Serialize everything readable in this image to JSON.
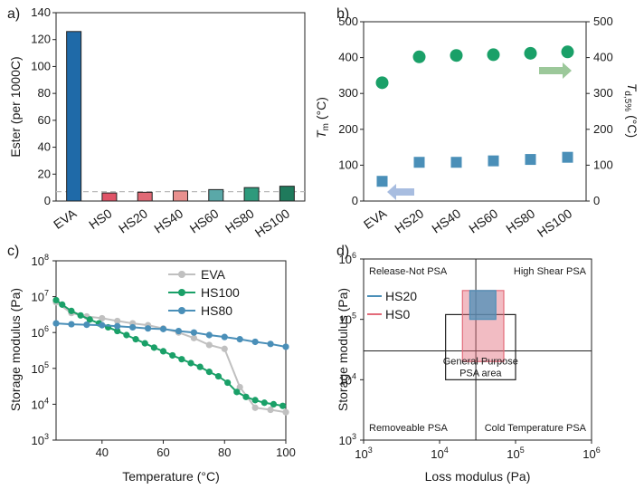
{
  "chart_data": [
    {
      "panel": "a)",
      "type": "bar",
      "categories": [
        "EVA",
        "HS0",
        "HS20",
        "HS40",
        "HS60",
        "HS80",
        "HS100"
      ],
      "values": [
        126,
        6,
        6.5,
        7.5,
        8.5,
        10,
        11
      ],
      "colors": [
        "#1f6aa8",
        "#e05468",
        "#e06a76",
        "#e8908e",
        "#5aa8a8",
        "#2e9a7c",
        "#1f7a5c"
      ],
      "reference_line": 7,
      "xlabel": "",
      "ylabel": "Ester (per 1000C)",
      "ylim": [
        0,
        140
      ],
      "yticks": [
        "0",
        "20",
        "40",
        "60",
        "80",
        "100",
        "120",
        "140"
      ]
    },
    {
      "panel": "b)",
      "type": "scatter",
      "categories": [
        "EVA",
        "HS20",
        "HS40",
        "HS60",
        "HS80",
        "HS100"
      ],
      "series": [
        {
          "axis": "left",
          "color": "#1aa068",
          "marker": "circle",
          "values": [
            330,
            402,
            406,
            408,
            412,
            416
          ]
        },
        {
          "axis": "right",
          "color": "#4a8fb8",
          "marker": "square",
          "values": [
            55,
            108,
            108,
            112,
            116,
            122
          ]
        }
      ],
      "ylabel_left": "T",
      "ylabel_left_sub": "m",
      "ylabel_left_unit": " (°C)",
      "ylabel_right": "T",
      "ylabel_right_sub": "d,5%",
      "ylabel_right_unit": " (°C)",
      "ylim": [
        0,
        500
      ],
      "yticks": [
        "0",
        "100",
        "200",
        "300",
        "400",
        "500"
      ],
      "arrow_colors": [
        "#9cc89a",
        "#a8bde0"
      ]
    },
    {
      "panel": "c)",
      "type": "line",
      "xlabel": "Temperature (°C)",
      "ylabel": "Storage modulus (Pa)",
      "xlim": [
        25,
        100
      ],
      "xticks": [
        "40",
        "60",
        "80",
        "100"
      ],
      "ylog": true,
      "ylim": [
        1000,
        100000000
      ],
      "ytick_base": "10",
      "ytick_exponents": [
        "3",
        "4",
        "5",
        "6",
        "7",
        "8"
      ],
      "series": [
        {
          "name": "EVA",
          "color": "#c0c0c0",
          "x": [
            25,
            30,
            35,
            40,
            45,
            50,
            55,
            60,
            65,
            70,
            75,
            80,
            85,
            90,
            95,
            100
          ],
          "y": [
            7000000,
            3500000,
            2800000,
            2500000,
            2100000,
            1800000,
            1600000,
            1300000,
            1000000,
            700000,
            450000,
            350000,
            30000,
            8000,
            7000,
            6000
          ]
        },
        {
          "name": "HS100",
          "color": "#1aa068",
          "x": [
            25,
            27,
            30,
            33,
            36,
            39,
            42,
            45,
            48,
            51,
            54,
            57,
            60,
            63,
            66,
            69,
            72,
            75,
            78,
            81,
            84,
            87,
            90,
            93,
            96,
            99
          ],
          "y": [
            8000000,
            6000000,
            4000000,
            3000000,
            2300000,
            1800000,
            1400000,
            1100000,
            850000,
            650000,
            500000,
            380000,
            300000,
            230000,
            180000,
            140000,
            110000,
            80000,
            60000,
            40000,
            22000,
            16000,
            13000,
            11000,
            10000,
            9000
          ]
        },
        {
          "name": "HS80",
          "color": "#4a8fb8",
          "x": [
            25,
            30,
            35,
            40,
            45,
            50,
            55,
            60,
            65,
            70,
            75,
            80,
            85,
            90,
            95,
            100
          ],
          "y": [
            1800000,
            1700000,
            1650000,
            1600000,
            1500000,
            1400000,
            1300000,
            1250000,
            1100000,
            1000000,
            850000,
            750000,
            650000,
            550000,
            480000,
            400000
          ]
        }
      ]
    },
    {
      "panel": "d)",
      "type": "scatter",
      "xlabel": "Loss modulus (Pa)",
      "ylabel": "Storage modulus (Pa)",
      "xlog": true,
      "ylog": true,
      "xlim": [
        1000,
        1000000
      ],
      "ylim": [
        1000,
        1000000
      ],
      "tick_base": "10",
      "tick_exponents": [
        "3",
        "4",
        "5",
        "6"
      ],
      "divider_x": 30000,
      "divider_y": 30000,
      "quadrant_labels": [
        "Release-Not PSA",
        "High Shear PSA",
        "Removeable PSA",
        "Cold Temperature PSA"
      ],
      "region": {
        "label_line1": "General Purpose",
        "label_line2": "PSA area",
        "x": [
          12000,
          100000
        ],
        "y": [
          10000,
          120000
        ]
      },
      "series": [
        {
          "name": "HS20",
          "color": "#4a8fb8",
          "x": [
            25000,
            55000
          ],
          "y": [
            100000,
            300000
          ]
        },
        {
          "name": "HS0",
          "color": "#e36b7a",
          "x": [
            20000,
            70000
          ],
          "y": [
            20000,
            300000
          ]
        }
      ]
    }
  ]
}
